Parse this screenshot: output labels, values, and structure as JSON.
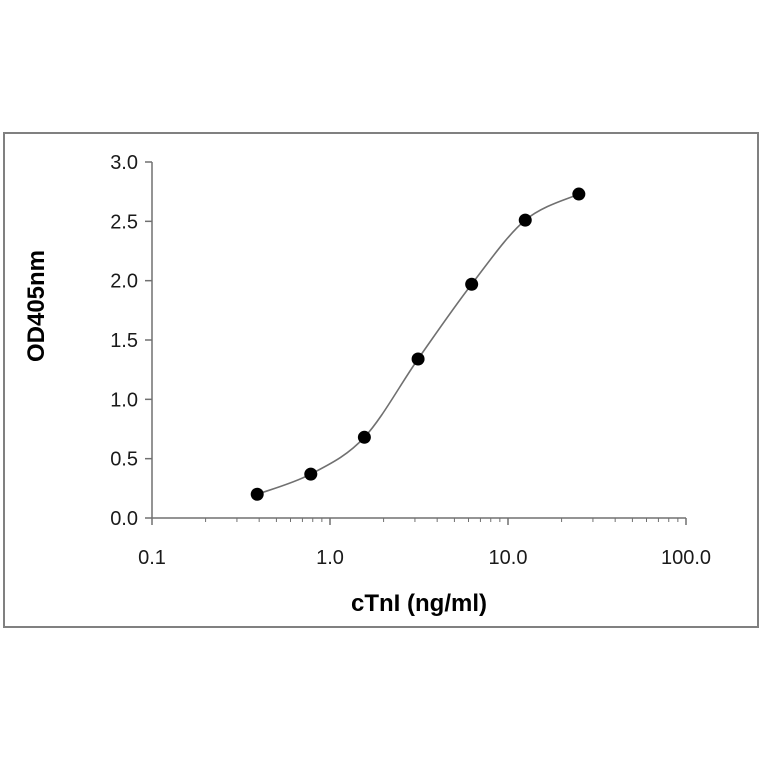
{
  "chart_data": {
    "type": "scatter",
    "title": "",
    "xlabel": "cTnI (ng/ml)",
    "ylabel": "OD405nm",
    "x_scale": "log",
    "xlim": [
      0.1,
      100.0
    ],
    "ylim": [
      0.0,
      3.0
    ],
    "x_ticks": [
      0.1,
      1.0,
      10.0,
      100.0
    ],
    "x_tick_labels": [
      "0.1",
      "1.0",
      "10.0",
      "100.0"
    ],
    "y_ticks": [
      0.0,
      0.5,
      1.0,
      1.5,
      2.0,
      2.5,
      3.0
    ],
    "y_tick_labels": [
      "0.0",
      "0.5",
      "1.0",
      "1.5",
      "2.0",
      "2.5",
      "3.0"
    ],
    "grid": false,
    "legend": "none",
    "series": [
      {
        "x": [
          0.39,
          0.78,
          1.56,
          3.125,
          6.25,
          12.5,
          25.0
        ],
        "y": [
          0.2,
          0.37,
          0.68,
          1.34,
          1.97,
          2.51,
          2.73
        ],
        "marker": "circle",
        "fit": "smooth curve"
      }
    ],
    "colors": {
      "marker": "#000000",
      "curve": "#707070",
      "axis": "#707070",
      "frame": "#808080"
    }
  }
}
